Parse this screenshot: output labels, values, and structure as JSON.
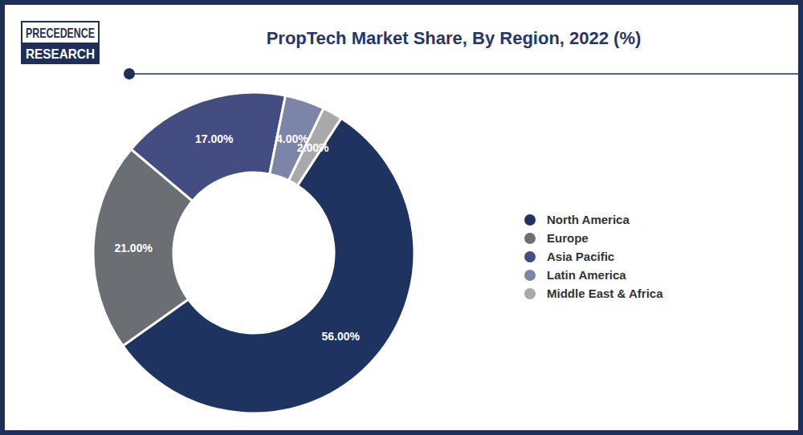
{
  "chart_data": {
    "type": "pie",
    "title": "PropTech Market Share, By Region, 2022 (%)",
    "categories": [
      "North America",
      "Europe",
      "Asia Pacific",
      "Latin America",
      "Middle East & Africa"
    ],
    "values": [
      56,
      21,
      17,
      4,
      2
    ],
    "value_labels": [
      "56.00%",
      "21.00%",
      "17.00%",
      "4.00%",
      "2.00%"
    ],
    "colors": [
      "#1f3360",
      "#6b6e73",
      "#434d82",
      "#7c85a8",
      "#a9a9a9"
    ],
    "data_labels": true,
    "legend": "right"
  },
  "logo": [
    "PRECEDENCE",
    "RESEARCH"
  ]
}
